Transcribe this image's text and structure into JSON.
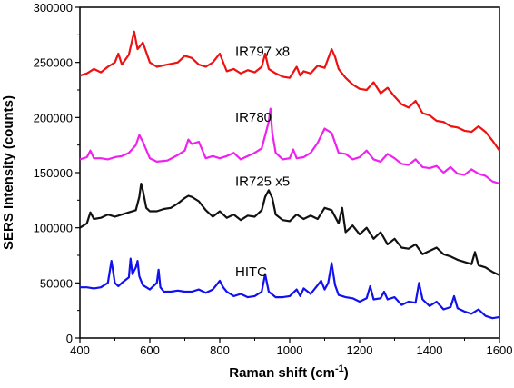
{
  "chart_data": {
    "type": "line",
    "title": "",
    "xlabel_main": "Raman shift (cm",
    "xlabel_sup": "-1",
    "xlabel_end": ")",
    "ylabel": "SERS Intensity (counts)",
    "xlim": [
      400,
      1600
    ],
    "ylim": [
      0,
      300000
    ],
    "xticks": [
      400,
      600,
      800,
      1000,
      1200,
      1400,
      1600
    ],
    "yticks": [
      0,
      50000,
      100000,
      150000,
      200000,
      250000,
      300000
    ],
    "grid": false,
    "legend": "none",
    "series": [
      {
        "name": "IR797 x8",
        "color": "#ee1111",
        "x": [
          400,
          420,
          440,
          460,
          480,
          500,
          510,
          520,
          540,
          555,
          565,
          580,
          600,
          620,
          650,
          680,
          700,
          720,
          740,
          760,
          780,
          800,
          820,
          840,
          860,
          880,
          900,
          920,
          930,
          940,
          960,
          980,
          1000,
          1020,
          1030,
          1040,
          1060,
          1080,
          1100,
          1120,
          1130,
          1140,
          1160,
          1180,
          1200,
          1220,
          1240,
          1260,
          1280,
          1300,
          1320,
          1340,
          1360,
          1380,
          1400,
          1420,
          1440,
          1460,
          1480,
          1500,
          1520,
          1540,
          1560,
          1580,
          1600
        ],
        "y": [
          238000,
          240000,
          244000,
          241000,
          246000,
          250000,
          258000,
          248000,
          257000,
          278000,
          262000,
          268000,
          250000,
          246000,
          248000,
          250000,
          256000,
          254000,
          248000,
          246000,
          250000,
          258000,
          242000,
          244000,
          240000,
          243000,
          241000,
          246000,
          258000,
          244000,
          240000,
          237000,
          236000,
          246000,
          238000,
          242000,
          240000,
          247000,
          245000,
          262000,
          255000,
          244000,
          236000,
          230000,
          226000,
          225000,
          232000,
          222000,
          227000,
          219000,
          212000,
          209000,
          215000,
          204000,
          202000,
          197000,
          196000,
          192000,
          191000,
          188000,
          187000,
          192000,
          187000,
          179000,
          170000
        ]
      },
      {
        "name": "IR780",
        "color": "#ee22ee",
        "x": [
          400,
          420,
          430,
          440,
          460,
          480,
          500,
          520,
          540,
          560,
          570,
          580,
          600,
          620,
          650,
          680,
          700,
          710,
          720,
          740,
          760,
          780,
          800,
          820,
          840,
          860,
          880,
          900,
          920,
          940,
          945,
          950,
          960,
          980,
          1000,
          1010,
          1020,
          1040,
          1060,
          1080,
          1100,
          1120,
          1140,
          1160,
          1180,
          1200,
          1220,
          1240,
          1260,
          1280,
          1300,
          1320,
          1340,
          1360,
          1380,
          1400,
          1420,
          1440,
          1460,
          1480,
          1500,
          1520,
          1540,
          1560,
          1580,
          1600
        ],
        "y": [
          162000,
          164000,
          170000,
          163000,
          163000,
          162000,
          164000,
          165000,
          168000,
          175000,
          184000,
          178000,
          163000,
          160000,
          161000,
          166000,
          170000,
          180000,
          176000,
          178000,
          163000,
          165000,
          163000,
          165000,
          168000,
          162000,
          165000,
          168000,
          172000,
          196000,
          208000,
          186000,
          168000,
          162000,
          163000,
          171000,
          163000,
          164000,
          168000,
          177000,
          190000,
          186000,
          168000,
          167000,
          162000,
          164000,
          170000,
          162000,
          160000,
          167000,
          163000,
          158000,
          157000,
          162000,
          155000,
          154000,
          156000,
          150000,
          155000,
          149000,
          148000,
          153000,
          149000,
          147000,
          142000,
          140000
        ]
      },
      {
        "name": "IR725 x5",
        "color": "#111111",
        "x": [
          400,
          420,
          430,
          440,
          460,
          480,
          500,
          520,
          540,
          560,
          570,
          575,
          580,
          590,
          600,
          620,
          640,
          660,
          680,
          700,
          710,
          720,
          740,
          760,
          780,
          800,
          820,
          840,
          860,
          880,
          900,
          920,
          930,
          940,
          950,
          960,
          980,
          1000,
          1020,
          1040,
          1060,
          1080,
          1100,
          1120,
          1140,
          1150,
          1160,
          1180,
          1200,
          1220,
          1240,
          1260,
          1280,
          1300,
          1320,
          1340,
          1360,
          1380,
          1400,
          1420,
          1440,
          1460,
          1480,
          1500,
          1520,
          1530,
          1540,
          1560,
          1580,
          1600
        ],
        "y": [
          100000,
          104000,
          114000,
          108000,
          109000,
          112000,
          110000,
          112000,
          114000,
          116000,
          128000,
          140000,
          134000,
          118000,
          115000,
          115000,
          117000,
          118000,
          122000,
          127000,
          129000,
          128000,
          124000,
          116000,
          110000,
          115000,
          109000,
          112000,
          107000,
          111000,
          110000,
          116000,
          128000,
          134000,
          127000,
          112000,
          107000,
          106000,
          112000,
          108000,
          111000,
          108000,
          118000,
          116000,
          104000,
          118000,
          96000,
          102000,
          94000,
          100000,
          90000,
          96000,
          85000,
          90000,
          82000,
          81000,
          85000,
          76000,
          79000,
          82000,
          76000,
          74000,
          71000,
          69000,
          67000,
          78000,
          66000,
          64000,
          60000,
          57000
        ]
      },
      {
        "name": "HITC",
        "color": "#1111ee",
        "x": [
          400,
          420,
          440,
          460,
          480,
          490,
          500,
          510,
          520,
          540,
          545,
          550,
          560,
          565,
          570,
          580,
          600,
          620,
          625,
          630,
          640,
          660,
          680,
          700,
          720,
          740,
          760,
          780,
          790,
          800,
          810,
          820,
          840,
          860,
          880,
          900,
          920,
          930,
          940,
          960,
          980,
          1000,
          1020,
          1030,
          1040,
          1060,
          1080,
          1090,
          1100,
          1110,
          1120,
          1130,
          1140,
          1160,
          1180,
          1200,
          1220,
          1230,
          1240,
          1260,
          1270,
          1280,
          1300,
          1320,
          1340,
          1360,
          1370,
          1380,
          1400,
          1420,
          1440,
          1460,
          1470,
          1480,
          1500,
          1520,
          1540,
          1560,
          1580,
          1600
        ],
        "y": [
          46000,
          46000,
          45000,
          46000,
          50000,
          70000,
          50000,
          47000,
          50000,
          55000,
          72000,
          58000,
          64000,
          70000,
          56000,
          48000,
          44000,
          50000,
          62000,
          46000,
          42000,
          42000,
          43000,
          42000,
          42000,
          44000,
          41000,
          44000,
          48000,
          52000,
          46000,
          42000,
          38000,
          40000,
          37000,
          38000,
          42000,
          58000,
          42000,
          37000,
          37000,
          38000,
          44000,
          38000,
          45000,
          40000,
          48000,
          52000,
          44000,
          50000,
          68000,
          48000,
          39000,
          37000,
          36000,
          33000,
          36000,
          47000,
          35000,
          36000,
          42000,
          35000,
          37000,
          30000,
          33000,
          32000,
          50000,
          35000,
          29000,
          33000,
          26000,
          28000,
          38000,
          27000,
          24000,
          22000,
          26000,
          20000,
          18000,
          19000
        ]
      }
    ],
    "labels": [
      {
        "text": "IR797 x8",
        "x": 1000,
        "y": 256000
      },
      {
        "text": "IR780",
        "x": 1000,
        "y": 196000
      },
      {
        "text": "IR725 x5",
        "x": 1000,
        "y": 138000
      },
      {
        "text": "HITC",
        "x": 1000,
        "y": 56000
      }
    ]
  }
}
